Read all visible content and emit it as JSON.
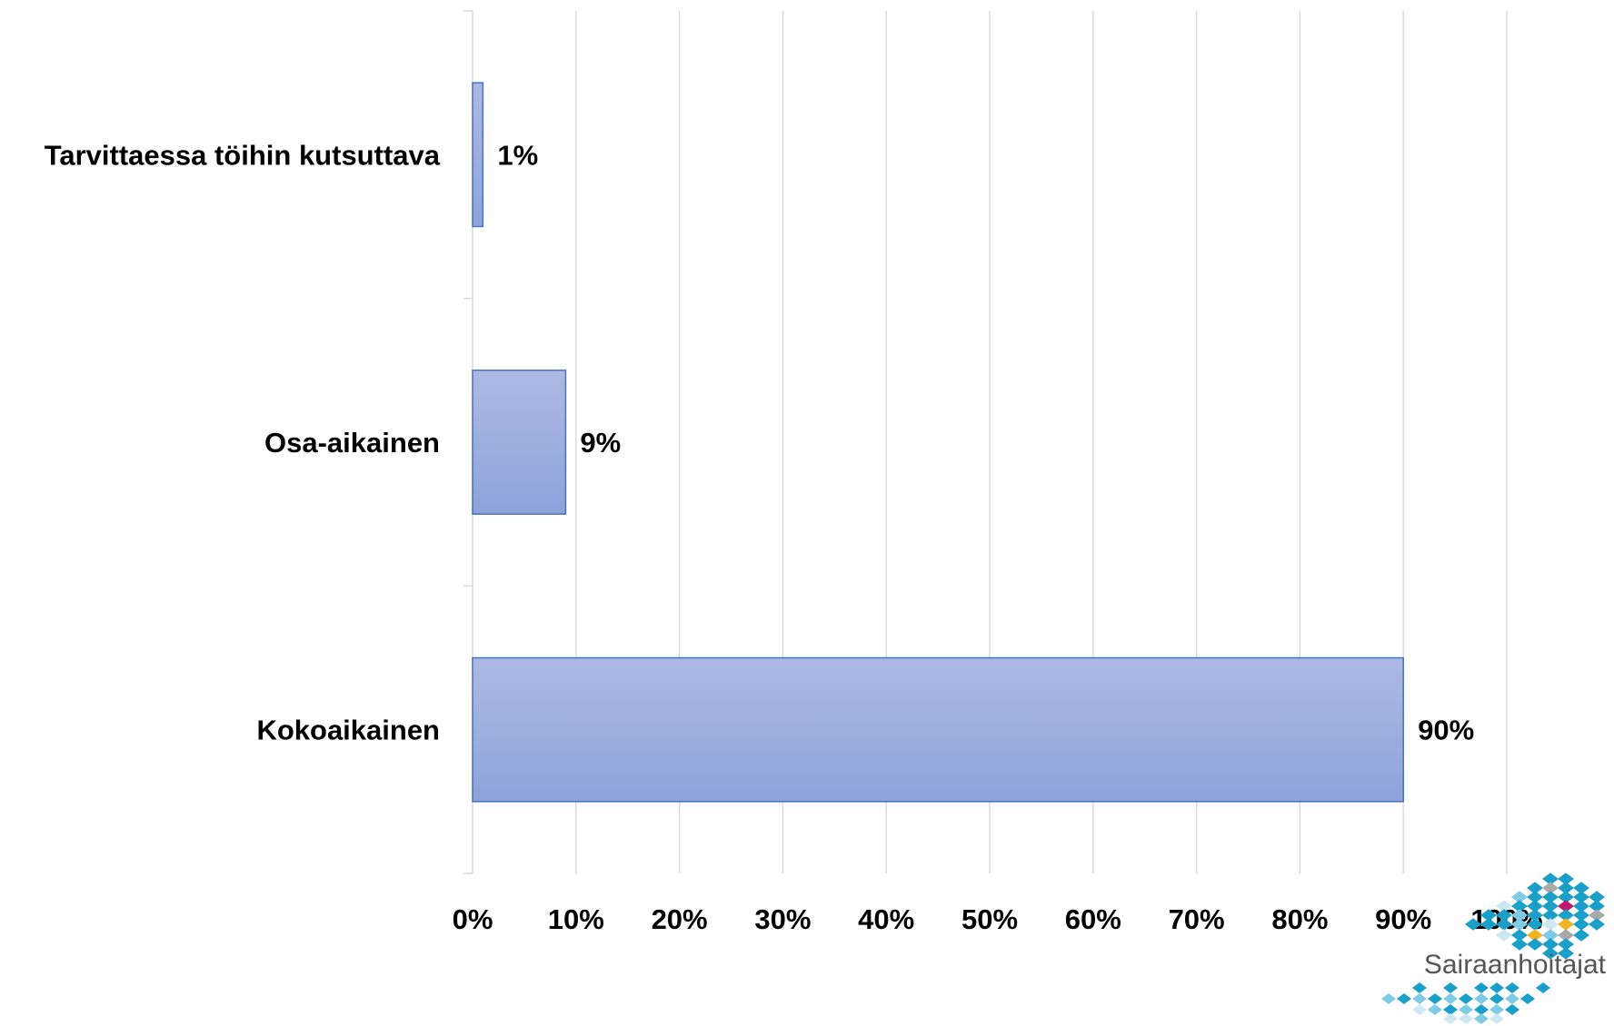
{
  "chart_data": {
    "type": "bar",
    "orientation": "horizontal",
    "categories": [
      "Tarvittaessa töihin kutsuttava",
      "Osa-aikainen",
      "Kokoaikainen"
    ],
    "values": [
      1,
      9,
      90
    ],
    "data_labels": [
      "1%",
      "9%",
      "90%"
    ],
    "xlim": [
      0,
      100
    ],
    "xticks": [
      "0%",
      "10%",
      "20%",
      "30%",
      "40%",
      "50%",
      "60%",
      "70%",
      "80%",
      "90%",
      "100%"
    ],
    "grid": true,
    "legend": "none",
    "bar_color": "#8ea3da",
    "bar_color_top": "#adb9e3",
    "bar_border_color": "#4472c4",
    "grid_color": "#d9d9d9"
  },
  "logo": {
    "text": "Sairaanhoitajat",
    "colors": [
      "#1a9fc9",
      "#a9a9a9",
      "#c2176f",
      "#f0b323",
      "#7fcbe5",
      "#cde8f3"
    ]
  }
}
